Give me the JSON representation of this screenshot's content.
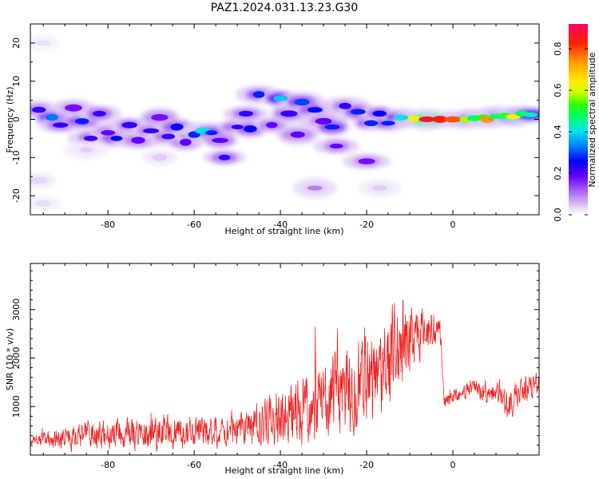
{
  "figure": {
    "title": "PAZ1.2024.031.13.23.G30"
  },
  "chart_data": [
    {
      "type": "heatmap",
      "title": "",
      "xlabel": "Height of straight line (km)",
      "ylabel": "Frequency (Hz)",
      "xlim": [
        -98,
        20
      ],
      "ylim": [
        -25,
        25
      ],
      "x_ticks": [
        -80,
        -60,
        -40,
        -20,
        0
      ],
      "y_ticks": [
        -20,
        -10,
        0,
        10,
        20
      ],
      "colorbar": {
        "label": "Normalized spectral amplitude",
        "range": [
          0,
          0.92
        ],
        "ticks": [
          0.0,
          0.2,
          0.4,
          0.6,
          0.8
        ]
      },
      "blobs": [
        {
          "x": -96,
          "f": 2.5,
          "a": 0.25
        },
        {
          "x": -93,
          "f": 0.5,
          "a": 0.35
        },
        {
          "x": -91,
          "f": -1.5,
          "a": 0.25
        },
        {
          "x": -88,
          "f": 3.0,
          "a": 0.2
        },
        {
          "x": -86,
          "f": -0.5,
          "a": 0.3
        },
        {
          "x": -84,
          "f": -5.0,
          "a": 0.25
        },
        {
          "x": -82,
          "f": 1.5,
          "a": 0.25
        },
        {
          "x": -80,
          "f": -3.5,
          "a": 0.22
        },
        {
          "x": -78,
          "f": -5.0,
          "a": 0.28
        },
        {
          "x": -75,
          "f": -1.5,
          "a": 0.25
        },
        {
          "x": -73,
          "f": -5.5,
          "a": 0.22
        },
        {
          "x": -70,
          "f": -3.0,
          "a": 0.25
        },
        {
          "x": -68,
          "f": 0.5,
          "a": 0.2
        },
        {
          "x": -66,
          "f": -4.5,
          "a": 0.25
        },
        {
          "x": -64,
          "f": -2.0,
          "a": 0.28
        },
        {
          "x": -62,
          "f": -6.0,
          "a": 0.22
        },
        {
          "x": -60,
          "f": -4.0,
          "a": 0.3
        },
        {
          "x": -58,
          "f": -3.0,
          "a": 0.42
        },
        {
          "x": -56,
          "f": -3.5,
          "a": 0.3
        },
        {
          "x": -54,
          "f": -5.5,
          "a": 0.22
        },
        {
          "x": -53,
          "f": -10.0,
          "a": 0.25
        },
        {
          "x": -50,
          "f": -2.0,
          "a": 0.25
        },
        {
          "x": -48,
          "f": 1.5,
          "a": 0.25
        },
        {
          "x": -47,
          "f": -2.5,
          "a": 0.28
        },
        {
          "x": -45,
          "f": 6.5,
          "a": 0.3
        },
        {
          "x": -42,
          "f": -1.5,
          "a": 0.22
        },
        {
          "x": -40,
          "f": 5.5,
          "a": 0.4
        },
        {
          "x": -38,
          "f": 1.5,
          "a": 0.25
        },
        {
          "x": -36,
          "f": -4.0,
          "a": 0.22
        },
        {
          "x": -35,
          "f": 4.5,
          "a": 0.32
        },
        {
          "x": -32,
          "f": 2.5,
          "a": 0.28
        },
        {
          "x": -30,
          "f": -0.5,
          "a": 0.22
        },
        {
          "x": -28,
          "f": -2.0,
          "a": 0.3
        },
        {
          "x": -27,
          "f": -7.0,
          "a": 0.22
        },
        {
          "x": -25,
          "f": 3.5,
          "a": 0.25
        },
        {
          "x": -22,
          "f": 2.0,
          "a": 0.3
        },
        {
          "x": -20,
          "f": -11.0,
          "a": 0.2
        },
        {
          "x": -19,
          "f": -1.0,
          "a": 0.3
        },
        {
          "x": -17,
          "f": 1.5,
          "a": 0.28
        },
        {
          "x": -15,
          "f": -1.0,
          "a": 0.3
        },
        {
          "x": -12,
          "f": 0.5,
          "a": 0.42
        },
        {
          "x": -9,
          "f": 0.2,
          "a": 0.7
        },
        {
          "x": -6,
          "f": 0.0,
          "a": 0.88
        },
        {
          "x": -3,
          "f": 0.0,
          "a": 0.86
        },
        {
          "x": 0,
          "f": 0.0,
          "a": 0.82
        },
        {
          "x": 3,
          "f": 0.0,
          "a": 0.62
        },
        {
          "x": 5,
          "f": 0.3,
          "a": 0.5
        },
        {
          "x": 7,
          "f": 0.5,
          "a": 0.55
        },
        {
          "x": 8,
          "f": 0.0,
          "a": 0.78
        },
        {
          "x": 10,
          "f": 0.8,
          "a": 0.5
        },
        {
          "x": 12,
          "f": 1.0,
          "a": 0.55
        },
        {
          "x": 14,
          "f": 0.7,
          "a": 0.7
        },
        {
          "x": 16,
          "f": 1.5,
          "a": 0.5
        },
        {
          "x": 18,
          "f": 1.2,
          "a": 0.45
        },
        {
          "x": -95,
          "f": 20,
          "a": 0.04
        },
        {
          "x": -96,
          "f": -16,
          "a": 0.05
        },
        {
          "x": -95,
          "f": -22,
          "a": 0.04
        },
        {
          "x": -32,
          "f": -18,
          "a": 0.12
        },
        {
          "x": -17,
          "f": -18,
          "a": 0.06
        },
        {
          "x": -85,
          "f": -8,
          "a": 0.06
        },
        {
          "x": -68,
          "f": -10,
          "a": 0.06
        }
      ]
    },
    {
      "type": "line",
      "title": "",
      "xlabel": "Height of straight line (km)",
      "ylabel": "SNR (10 * v/v)",
      "xlim": [
        -98,
        20
      ],
      "ylim": [
        0,
        3950
      ],
      "x_ticks": [
        -80,
        -60,
        -40,
        -20,
        0
      ],
      "y_ticks": [
        1000,
        2000,
        3000
      ],
      "color": "#ee2222",
      "x": [
        -98,
        -93,
        -88,
        -83,
        -78,
        -73,
        -68,
        -63,
        -58,
        -53,
        -48,
        -43,
        -38,
        -33,
        -28,
        -23,
        -18,
        -15,
        -13,
        -11,
        -9,
        -7,
        -5,
        -3,
        -2,
        0,
        3,
        5,
        8,
        11,
        13,
        15,
        17,
        19
      ],
      "mean": [
        300,
        330,
        360,
        400,
        420,
        440,
        460,
        470,
        480,
        520,
        560,
        700,
        900,
        1000,
        1200,
        1400,
        1500,
        1800,
        2200,
        2300,
        2400,
        2500,
        2600,
        2600,
        1100,
        1150,
        1300,
        1400,
        1200,
        1300,
        1000,
        1200,
        1300,
        1450
      ],
      "amp": [
        100,
        180,
        250,
        270,
        280,
        300,
        320,
        300,
        300,
        320,
        380,
        450,
        650,
        700,
        800,
        900,
        900,
        1000,
        1000,
        900,
        600,
        500,
        350,
        250,
        120,
        150,
        150,
        150,
        180,
        250,
        300,
        300,
        250,
        200
      ]
    }
  ],
  "colors": {
    "line": "#ee2222",
    "colormap": [
      "#ffffff",
      "#dcc4f5",
      "#a55cf0",
      "#6a00ff",
      "#0000ff",
      "#0080ff",
      "#00e6e6",
      "#00ff66",
      "#33ff00",
      "#ccff00",
      "#ffee00",
      "#ff9900",
      "#ff2200",
      "#ff0066"
    ]
  }
}
